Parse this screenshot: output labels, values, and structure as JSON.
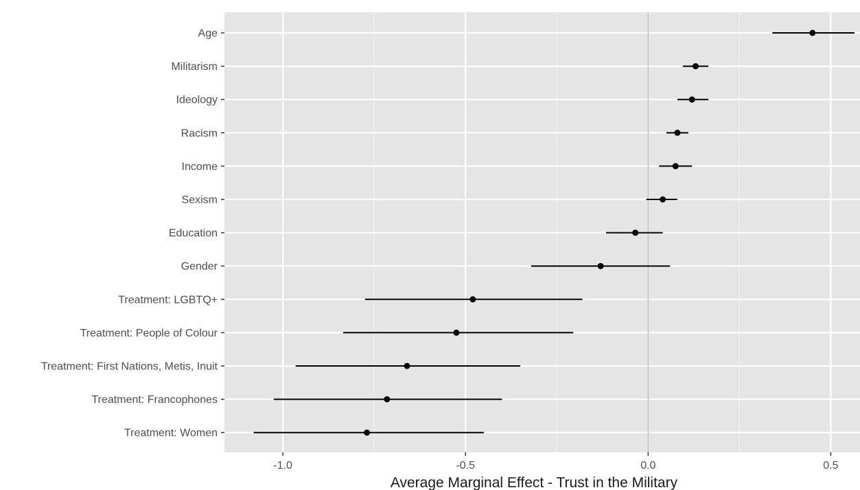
{
  "chart_data": {
    "type": "scatter",
    "subtype": "coefficient-plot",
    "xlabel": "Average Marginal Effect - Trust in the Military",
    "ylabel": "",
    "xlim": [
      -1.16,
      0.58
    ],
    "xticks": [
      -1.0,
      -0.5,
      0.0,
      0.5
    ],
    "xtick_labels": [
      "-1.0",
      "-0.5",
      "0.0",
      "0.5"
    ],
    "reference_line": 0.0,
    "grid": true,
    "categories": [
      "Age",
      "Militarism",
      "Ideology",
      "Racism",
      "Income",
      "Sexism",
      "Education",
      "Gender",
      "Treatment: LGBTQ+",
      "Treatment: People of Colour",
      "Treatment: First Nations, Metis, Inuit",
      "Treatment: Francophones",
      "Treatment: Women"
    ],
    "estimates": [
      0.45,
      0.13,
      0.12,
      0.08,
      0.075,
      0.04,
      -0.035,
      -0.13,
      -0.48,
      -0.525,
      -0.66,
      -0.715,
      -0.77
    ],
    "lower": [
      0.34,
      0.095,
      0.08,
      0.05,
      0.03,
      -0.005,
      -0.115,
      -0.32,
      -0.775,
      -0.835,
      -0.965,
      -1.025,
      -1.08
    ],
    "upper": [
      0.565,
      0.165,
      0.165,
      0.11,
      0.12,
      0.08,
      0.04,
      0.06,
      -0.18,
      -0.205,
      -0.35,
      -0.4,
      -0.45
    ],
    "colors": {
      "panel": "#e5e5e5",
      "grid_major": "#ffffff",
      "grid_minor": "#f2f2f2",
      "reference": "#bdbdbd",
      "point": "#000000",
      "interval": "#000000"
    }
  }
}
